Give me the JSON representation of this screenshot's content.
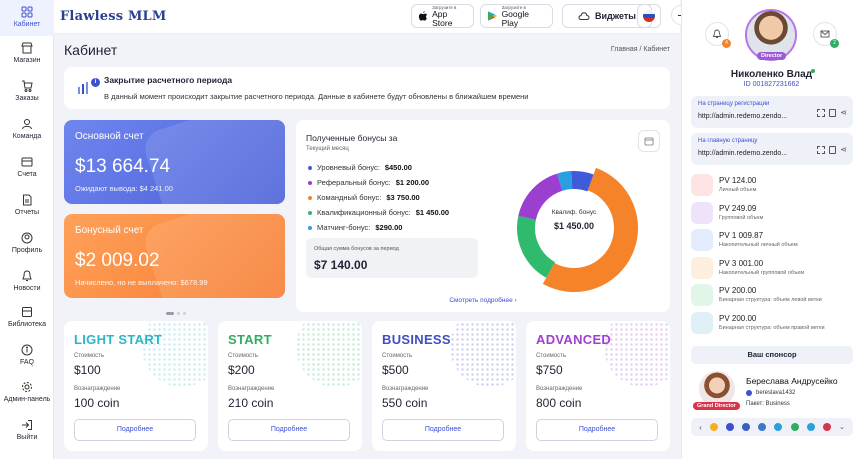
{
  "nav": [
    {
      "label": "Кабинет",
      "icon": "grid-icon",
      "active": true
    },
    {
      "label": "Магазин",
      "icon": "shop-icon"
    },
    {
      "label": "Заказы",
      "icon": "cart-icon"
    },
    {
      "label": "Команда",
      "icon": "team-icon"
    },
    {
      "label": "Счета",
      "icon": "wallet-icon"
    },
    {
      "label": "Отчеты",
      "icon": "report-icon"
    },
    {
      "label": "Профиль",
      "icon": "profile-icon"
    },
    {
      "label": "Новости",
      "icon": "news-icon"
    },
    {
      "label": "Библиотека",
      "icon": "library-icon"
    },
    {
      "label": "FAQ",
      "icon": "faq-icon"
    },
    {
      "label": "Админ-панель",
      "icon": "admin-icon"
    },
    {
      "label": "Выйти",
      "icon": "logout-icon"
    }
  ],
  "header": {
    "logo": "Flawless MLM",
    "appstore_small": "Загрузите в",
    "appstore_big": "App Store",
    "gplay_small": "Загрузите в",
    "gplay_big": "Google Play",
    "widgets": "Виджеты"
  },
  "page": {
    "title": "Кабинет",
    "crumbs": "Главная / Кабинет"
  },
  "notice": {
    "title": "Закрытие расчетного периода",
    "text": "В данный момент происходит закрытие расчетного периода. Данные в кабинете будут обновлены в ближайшем времени"
  },
  "accounts": {
    "main": {
      "title": "Основной счет",
      "value": "$13 664.74",
      "note": "Ожидают вывода: $4 241.00"
    },
    "bonus": {
      "title": "Бонусный счет",
      "value": "$2 009.02",
      "note": "Начислено, но не выплачено: $678.99"
    }
  },
  "bonuses": {
    "title": "Полученные бонусы за",
    "subtitle": "Текущий месяц",
    "rows": [
      {
        "label": "Уровневый бонус:",
        "value": "$450.00",
        "color": "#3f5bd9"
      },
      {
        "label": "Реферальный бонус:",
        "value": "$1 200.00",
        "color": "#9b3fd0"
      },
      {
        "label": "Командный бонус:",
        "value": "$3 750.00",
        "color": "#f5832a"
      },
      {
        "label": "Квалификационный бонус:",
        "value": "$1 450.00",
        "color": "#2fba6e"
      },
      {
        "label": "Матчинг-бонус:",
        "value": "$290.00",
        "color": "#28a0e0"
      }
    ],
    "total_label": "Общая сумма бонусов за период",
    "total_value": "$7 140.00",
    "more": "Смотреть подробнее",
    "center_label": "Квалиф. бонус",
    "center_value": "$1 450.00"
  },
  "chart_data": {
    "type": "pie",
    "categories": [
      "Уровневый бонус",
      "Реферальный бонус",
      "Командный бонус",
      "Квалификационный бонус",
      "Матчинг-бонус"
    ],
    "values": [
      450,
      1200,
      3750,
      1450,
      290
    ],
    "colors": [
      "#3f5bd9",
      "#9b3fd0",
      "#f5832a",
      "#2fba6e",
      "#28a0e0"
    ]
  },
  "packages": [
    {
      "name": "LIGHT START",
      "color": "#2bb6c9",
      "cost_label": "Стоимость",
      "cost": "$100",
      "reward_label": "Вознаграждение",
      "reward": "100 coin",
      "more": "Подробнее"
    },
    {
      "name": "START",
      "color": "#2fae5f",
      "cost_label": "Стоимость",
      "cost": "$200",
      "reward_label": "Вознаграждение",
      "reward": "210 coin",
      "more": "Подробнее"
    },
    {
      "name": "BUSINESS",
      "color": "#3f4fc0",
      "cost_label": "Стоимость",
      "cost": "$500",
      "reward_label": "Вознаграждение",
      "reward": "550 coin",
      "more": "Подробнее"
    },
    {
      "name": "ADVANCED",
      "color": "#a13fcf",
      "cost_label": "Стоимость",
      "cost": "$750",
      "reward_label": "Вознаграждение",
      "reward": "800 coin",
      "more": "Подробнее"
    }
  ],
  "profile": {
    "bell_count": "4",
    "mail_count": "2",
    "role": "Director",
    "name": "Николенко Влад",
    "id": "ID 001827231662",
    "reg_label": "На страницу регистрации",
    "reg_url": "http://admin.redemo.zendo...",
    "home_label": "На главную страницу",
    "home_url": "http://admin.redemo.zendo..."
  },
  "stats": [
    {
      "value": "PV 124.00",
      "desc": "Личный объем",
      "color": "#fde3e3",
      "icon": "wallet-red-icon"
    },
    {
      "value": "PV 249.09",
      "desc": "Групповой объем",
      "color": "#efe2fb",
      "icon": "coins-icon"
    },
    {
      "value": "PV 1 009.87",
      "desc": "Накопительный личный объем",
      "color": "#e3ecfd",
      "icon": "piggy-icon"
    },
    {
      "value": "PV 3 001.00",
      "desc": "Накопительный групповой объем",
      "color": "#fdeede",
      "icon": "group-piggy-icon"
    },
    {
      "value": "PV 200.00",
      "desc": "Бинарная структура: объем левой ветки",
      "color": "#e0f6e8",
      "icon": "tree-left-icon"
    },
    {
      "value": "PV 200.00",
      "desc": "Бинарная структура: объем правой ветки",
      "color": "#dff1f6",
      "icon": "tree-right-icon"
    }
  ],
  "sponsor": {
    "button": "Ваш спонсор",
    "name": "Береслава Андрусейко",
    "login": "bereslava1432",
    "package": "Пакет: Business",
    "role": "Grand Director"
  }
}
